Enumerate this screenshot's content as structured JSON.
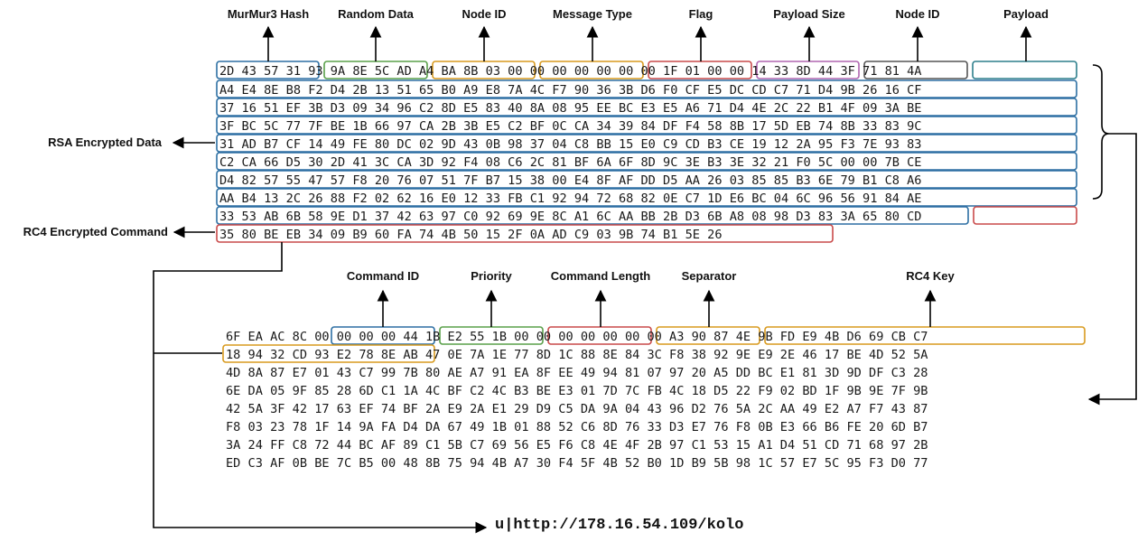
{
  "colors": {
    "line": "#000000",
    "blue": "#2d6fa3",
    "green": "#5aa04a",
    "orange": "#d89a1e",
    "red": "#c94a4a",
    "purple": "#b066b0",
    "gray": "#555555",
    "teal": "#2d7f8c"
  },
  "labels": {
    "murmur": "MurMur3 Hash",
    "random": "Random Data",
    "nodeid1": "Node ID",
    "msgtype": "Message Type",
    "flag": "Flag",
    "payloadsize": "Payload Size",
    "nodeid2": "Node ID",
    "payload": "Payload",
    "rsa": "RSA Encrypted Data",
    "rc4cmd": "RC4 Encrypted Command",
    "cmdid": "Command ID",
    "priority": "Priority",
    "cmdlen": "Command Length",
    "separator": "Separator",
    "rc4key": "RC4 Key"
  },
  "url": "u|http://178.16.54.109/kolo",
  "top_lines": [
    "2D 43 57 31 93 9A 8E 5C AD A4 BA 8B 03 00 00 00 00 00 00 00 1F 01 00 00 14 33 8D 44 3F 71 81 4A",
    "A4 E4 8E B8 F2 D4 2B 13 51 65 B0 A9 E8 7A 4C F7 90 36 3B D6 F0 CF E5 DC CD C7 71 D4 9B 26 16 CF",
    "37 16 51 EF 3B D3 09 34 96 C2 8D E5 83 40 8A 08 95 EE BC E3 E5 A6 71 D4 4E 2C 22 B1 4F 09 3A BE",
    "3F BC 5C 77 7F BE 1B 66 97 CA 2B 3B E5 C2 BF 0C CA 34 39 84 DF F4 58 8B 17 5D EB 74 8B 33 83 9C",
    "31 AD B7 CF 14 49 FE 80 DC 02 9D 43 0B 98 37 04 C8 BB 15 E0 C9 CD B3 CE 19 12 2A 95 F3 7E 93 83",
    "C2 CA 66 D5 30 2D 41 3C CA 3D 92 F4 08 C6 2C 81 BF 6A 6F 8D 9C 3E B3 3E 32 21 F0 5C 00 00 7B CE",
    "D4 82 57 55 47 57 F8 20 76 07 51 7F B7 15 38 00 E4 8F AF DD D5 AA 26 03 85 85 B3 6E 79 B1 C8 A6",
    "AA B4 13 2C 26 88 F2 02 62 16 E0 12 33 FB C1 92 94 72 68 82 0E C7 1D E6 BC 04 6C 96 56 91 84 AE",
    "33 53 AB 6B 58 9E D1 37 42 63 97 C0 92 69 9E 8C A1 6C AA BB 2B D3 6B A8 08 98 D3 83 3A 65 80 CD",
    "35 80 BE EB 34 09 B9 60 FA 74 4B 50 15 2F 0A AD C9 03 9B 74 B1 5E 26"
  ],
  "bottom_lines": [
    "6F EA AC 8C 00 00 00 00 44 1B E2 55 1B 00 00 00 00 00 00 00 A3 90 87 4E 9B FD E9 4B D6 69 CB C7",
    "18 94 32 CD 93 E2 78 8E AB 47 0E 7A 1E 77 8D 1C 88 8E 84 3C F8 38 92 9E E9 2E 46 17 BE 4D 52 5A",
    "4D 8A 87 E7 01 43 C7 99 7B 80 AE A7 91 EA 8F EE 49 94 81 07 97 20 A5 DD BC E1 81 3D 9D DF C3 28",
    "6E DA 05 9F 85 28 6D C1 1A 4C BF C2 4C B3 BE E3 01 7D 7C FB 4C 18 D5 22 F9 02 BD 1F 9B 9E 7F 9B",
    "42 5A 3F 42 17 63 EF 74 BF 2A E9 2A E1 29 D9 C5 DA 9A 04 43 96 D2 76 5A 2C AA 49 E2 A7 F7 43 87",
    "F8 03 23 78 1F 14 9A FA D4 DA 67 49 1B 01 88 52 C6 8D 76 33 D3 E7 76 F8 0B E3 66 B6 FE 20 6D B7",
    "3A 24 FF C8 72 44 BC AF 89 C1 5B C7 69 56 E5 F6 C8 4E 4F 2B 97 C1 53 15 A1 D4 51 CD 71 68 97 2B",
    "ED C3 AF 0B BE 7C B5 00 48 8B 75 94 4B A7 30 F4 5F 4B 52 B0 1D B9 5B 98 1C 57 E7 5C 95 F3 D0 77"
  ]
}
